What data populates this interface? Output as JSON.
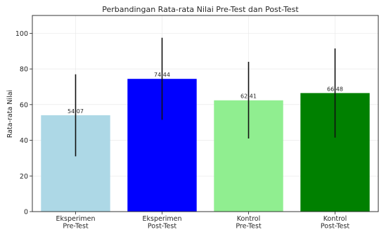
{
  "chart_data": {
    "type": "bar",
    "title": "Perbandingan Rata-rata Nilai Pre-Test dan Post-Test",
    "xlabel": "",
    "ylabel": "Rata-rata Nilai",
    "ylim": [
      0,
      110
    ],
    "yticks": [
      0,
      20,
      40,
      60,
      80,
      100
    ],
    "grid": true,
    "categories": [
      [
        "Eksperimen",
        "Pre-Test"
      ],
      [
        "Eksperimen",
        "Post-Test"
      ],
      [
        "Kontrol",
        "Pre-Test"
      ],
      [
        "Kontrol",
        "Post-Test"
      ]
    ],
    "values": [
      54.07,
      74.44,
      62.41,
      66.48
    ],
    "value_labels": [
      "54.07",
      "74.44",
      "62.41",
      "66.48"
    ],
    "error_low": [
      31,
      51.5,
      41,
      41.5
    ],
    "error_high": [
      77,
      97.5,
      84,
      91.5
    ],
    "colors": [
      "#add8e6",
      "#0000ff",
      "#90ee90",
      "#008000"
    ]
  }
}
